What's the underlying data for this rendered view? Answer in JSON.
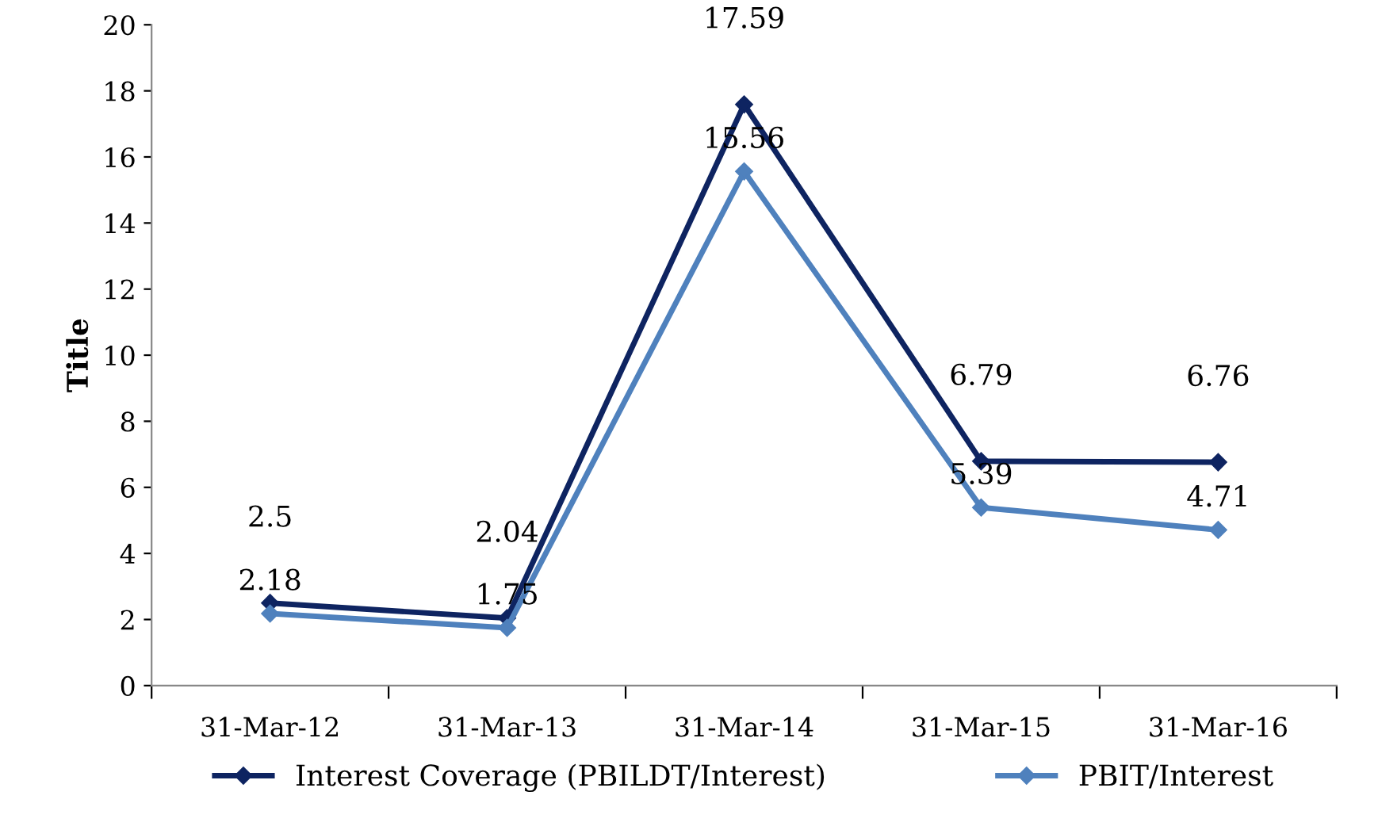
{
  "chart_data": {
    "type": "line",
    "ylabel": "Title",
    "categories": [
      "31-Mar-12",
      "31-Mar-13",
      "31-Mar-14",
      "31-Mar-15",
      "31-Mar-16"
    ],
    "series": [
      {
        "name": "Interest Coverage (PBILDT/Interest)",
        "color": "#0e2461",
        "values": [
          2.5,
          2.04,
          17.59,
          6.79,
          6.76
        ]
      },
      {
        "name": "PBIT/Interest",
        "color": "#4f81bd",
        "values": [
          2.18,
          1.75,
          15.56,
          5.39,
          4.71
        ]
      }
    ],
    "ylim": [
      0,
      20
    ],
    "yticks": [
      0,
      2,
      4,
      6,
      8,
      10,
      12,
      14,
      16,
      18,
      20
    ],
    "grid": false,
    "legend": "bottom",
    "marker": "diamond",
    "line_style": "solid",
    "data_labels": true
  }
}
